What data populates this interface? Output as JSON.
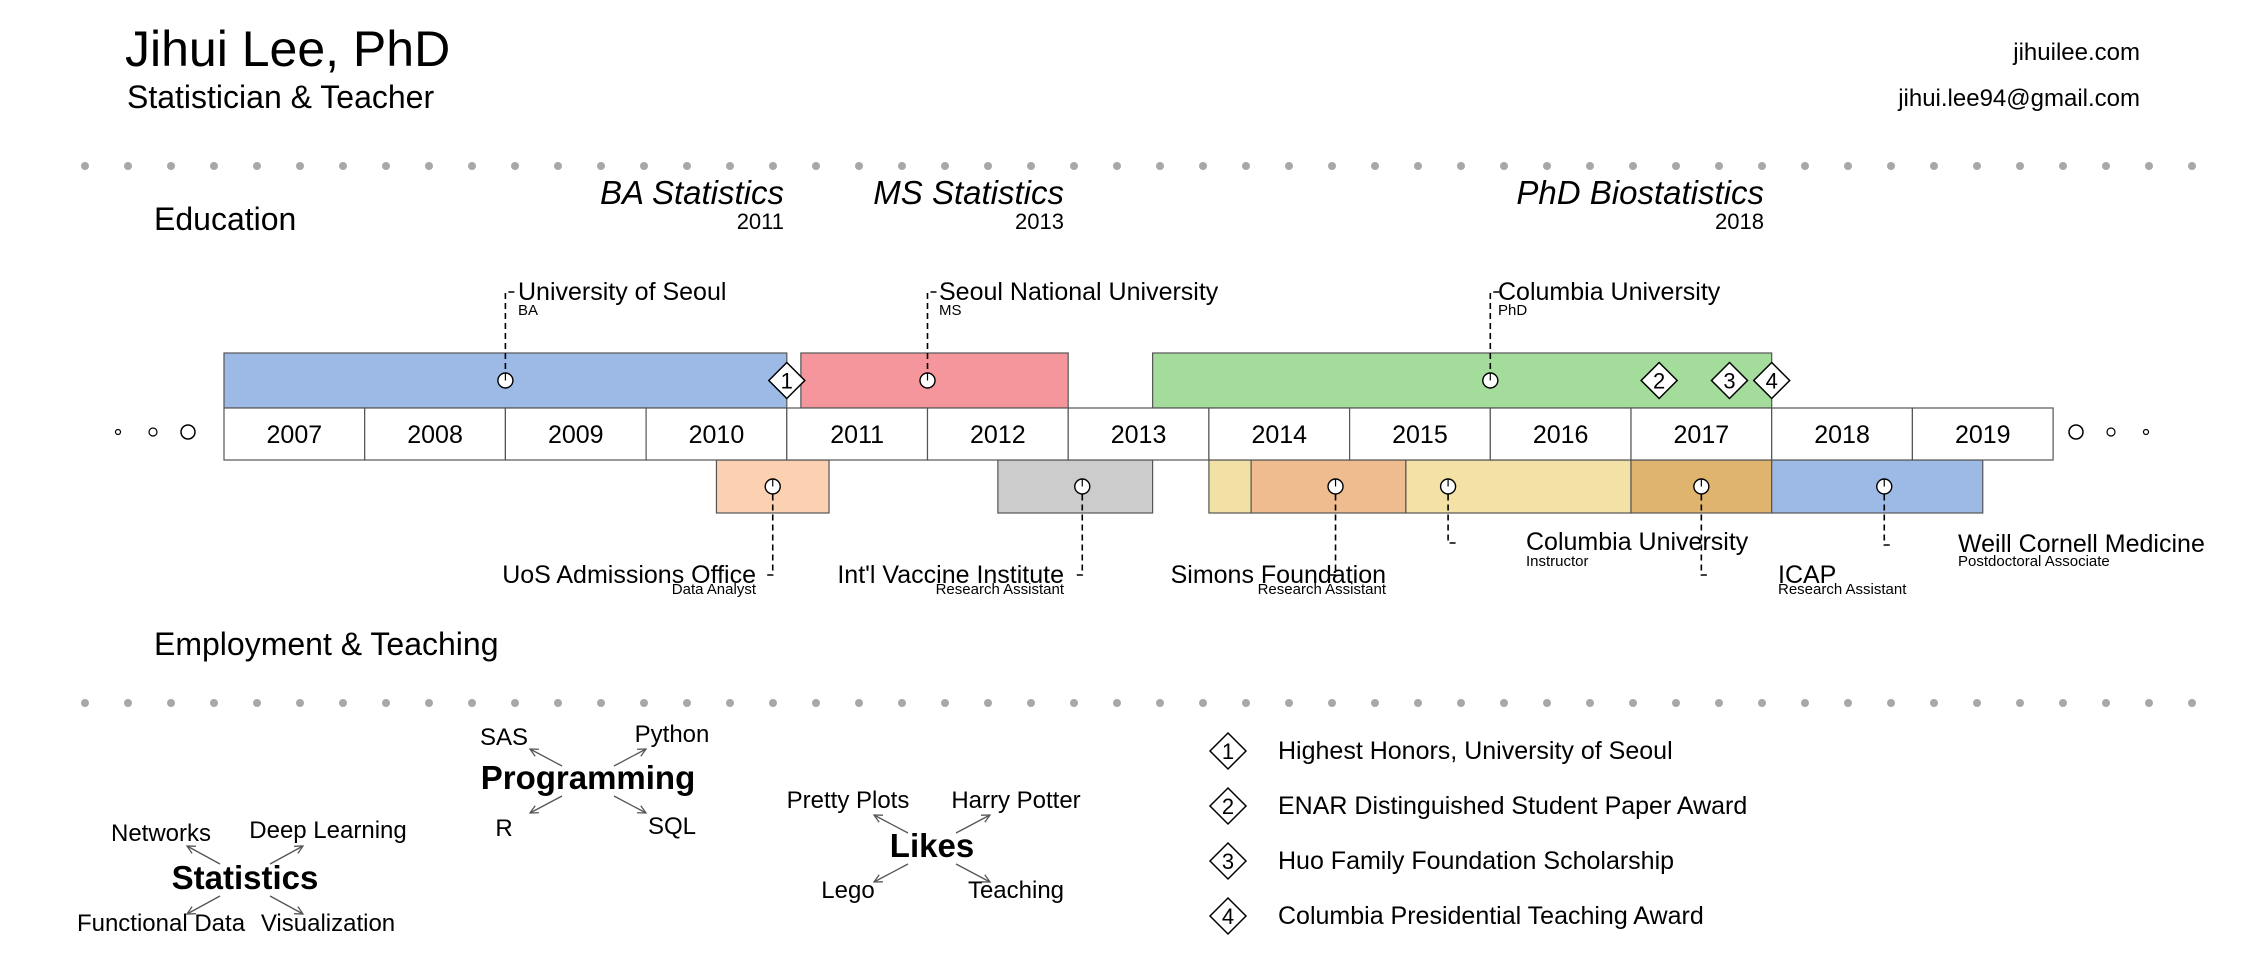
{
  "header": {
    "name": "Jihui Lee, PhD",
    "subtitle": "Statistician & Teacher",
    "website": "jihuilee.com",
    "email": "jihui.lee94@gmail.com"
  },
  "sections": {
    "education": "Education",
    "employment": "Employment & Teaching"
  },
  "colors": {
    "ba": "#9DBAE6",
    "ms": "#F5969C",
    "phd": "#A3DC9B",
    "uos_admissions": "#FCD1B2",
    "ivi": "#CCCCCC",
    "simons_lead": "#F2E1A5",
    "simons": "#EEBC8F",
    "columbia_instructor": "#F3E1A6",
    "icap": "#DFB46E",
    "weill": "#9DBAE6",
    "dots": "#A8A8A8"
  },
  "years": [
    "2007",
    "2008",
    "2009",
    "2010",
    "2011",
    "2012",
    "2013",
    "2014",
    "2015",
    "2016",
    "2017",
    "2018",
    "2019"
  ],
  "degrees": [
    {
      "title": "BA Statistics",
      "year": "2011"
    },
    {
      "title": "MS Statistics",
      "year": "2013"
    },
    {
      "title": "PhD Biostatistics",
      "year": "2018"
    }
  ],
  "education": [
    {
      "id": "ba",
      "institution": "University of Seoul",
      "degree": "BA",
      "start": 2007,
      "end": 2011,
      "marker": 2009
    },
    {
      "id": "ms",
      "institution": "Seoul National University",
      "degree": "MS",
      "start": 2011.1,
      "end": 2013,
      "marker": 2012
    },
    {
      "id": "phd",
      "institution": "Columbia University",
      "degree": "PhD",
      "start": 2013.6,
      "end": 2018,
      "marker": 2016
    }
  ],
  "employment": [
    {
      "id": "uos_admissions",
      "org": "UoS Admissions Office",
      "role": "Data Analyst",
      "start": 2010.5,
      "end": 2011.3,
      "marker": 2010.9
    },
    {
      "id": "ivi",
      "org": "Int'l Vaccine Institute",
      "role": "Research Assistant",
      "start": 2012.5,
      "end": 2013.6,
      "marker": 2013.1
    },
    {
      "id": "simons_lead",
      "org": "",
      "role": "",
      "start": 2014,
      "end": 2014.3,
      "marker": null
    },
    {
      "id": "simons",
      "org": "Simons Foundation",
      "role": "Research Assistant",
      "start": 2014.3,
      "end": 2015.4,
      "marker": 2014.9
    },
    {
      "id": "columbia_instructor",
      "org": "Columbia University",
      "role": "Instructor",
      "start": 2015.4,
      "end": 2017,
      "marker": 2015.7
    },
    {
      "id": "icap",
      "org": "ICAP",
      "role": "Research Assistant",
      "start": 2017,
      "end": 2018,
      "marker": 2017.5
    },
    {
      "id": "weill",
      "org": "Weill Cornell Medicine",
      "role": "Postdoctoral Associate",
      "start": 2018,
      "end": 2019.5,
      "marker": 2018.8
    }
  ],
  "awards": [
    {
      "num": "1",
      "label": "Highest Honors, University of Seoul",
      "timeline_year": 2011
    },
    {
      "num": "2",
      "label": "ENAR Distinguished Student Paper Award",
      "timeline_year": 2017.2
    },
    {
      "num": "3",
      "label": "Huo Family Foundation Scholarship",
      "timeline_year": 2017.7
    },
    {
      "num": "4",
      "label": "Columbia Presidential Teaching Award",
      "timeline_year": 2018
    }
  ],
  "skill_clusters": [
    {
      "id": "statistics",
      "center": "Statistics",
      "items": [
        "Networks",
        "Deep Learning",
        "Functional Data",
        "Visualization"
      ]
    },
    {
      "id": "programming",
      "center": "Programming",
      "items": [
        "SAS",
        "Python",
        "R",
        "SQL"
      ]
    },
    {
      "id": "likes",
      "center": "Likes",
      "items": [
        "Pretty Plots",
        "Harry Potter",
        "Lego",
        "Teaching"
      ]
    }
  ]
}
